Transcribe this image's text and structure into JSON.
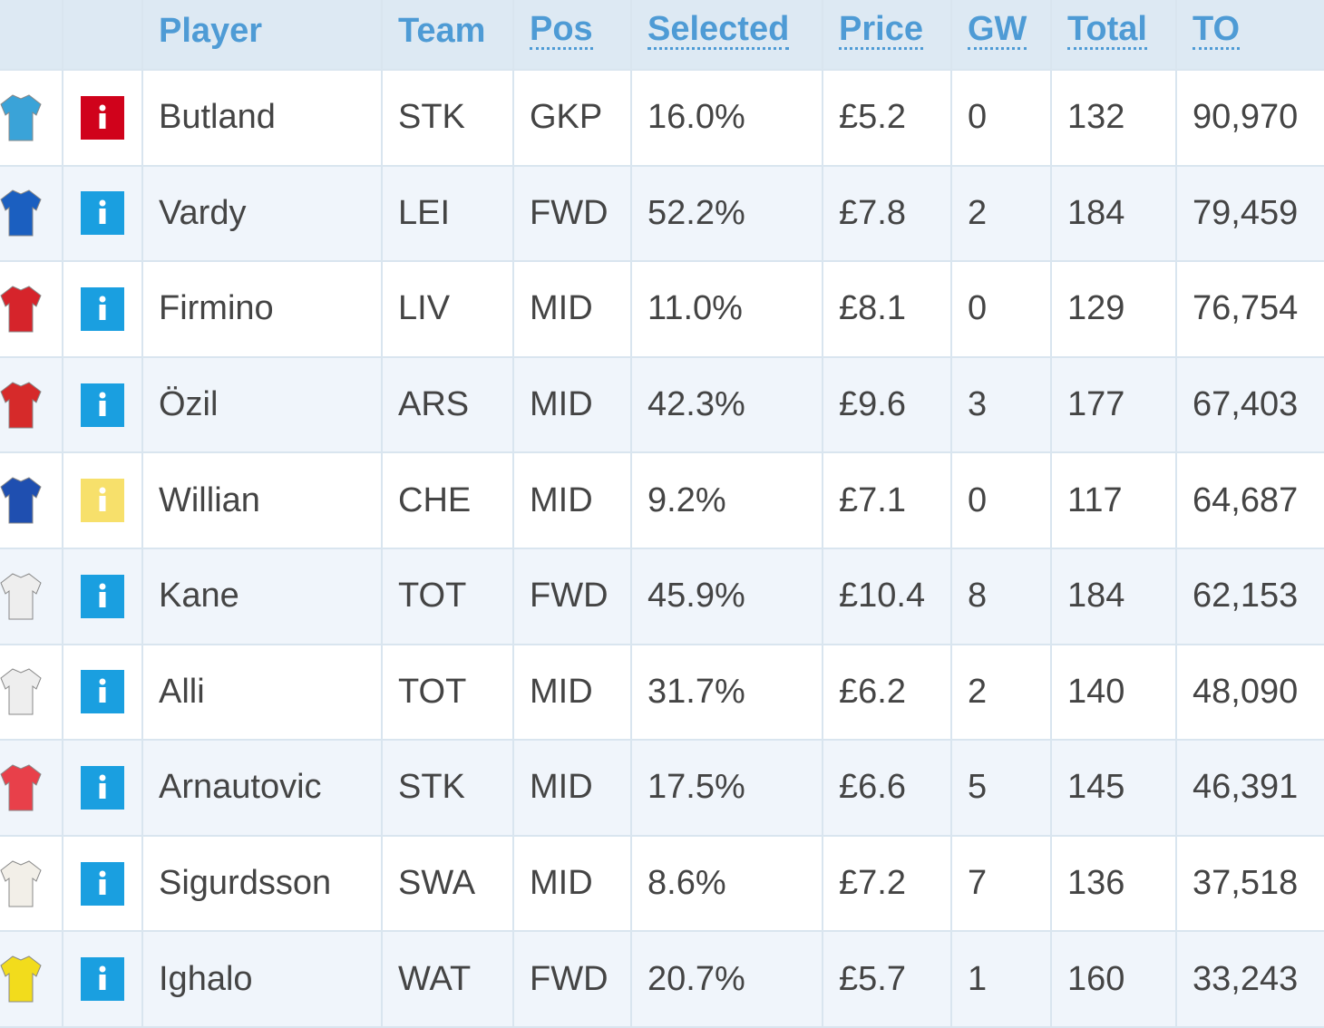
{
  "table": {
    "header": [
      "Player",
      "Team",
      "Pos",
      "Selected",
      "Price",
      "GW",
      "Total",
      "TO"
    ],
    "rows": [
      {
        "shirt_color": "#3aa3d8",
        "info_color": "#d0021b",
        "cells": [
          "Butland",
          "STK",
          "GKP",
          "16.0%",
          "£5.2",
          "0",
          "132",
          "90,970"
        ]
      },
      {
        "shirt_color": "#1b5fc0",
        "info_color": "#1a9fe0",
        "cells": [
          "Vardy",
          "LEI",
          "FWD",
          "52.2%",
          "£7.8",
          "2",
          "184",
          "79,459"
        ]
      },
      {
        "shirt_color": "#d6242b",
        "info_color": "#1a9fe0",
        "cells": [
          "Firmino",
          "LIV",
          "MID",
          "11.0%",
          "£8.1",
          "0",
          "129",
          "76,754"
        ]
      },
      {
        "shirt_color": "#d62a2a",
        "info_color": "#1a9fe0",
        "cells": [
          "Özil",
          "ARS",
          "MID",
          "42.3%",
          "£9.6",
          "3",
          "177",
          "67,403"
        ]
      },
      {
        "shirt_color": "#1f4fb0",
        "info_color": "#f7e06b",
        "cells": [
          "Willian",
          "CHE",
          "MID",
          "9.2%",
          "£7.1",
          "0",
          "117",
          "64,687"
        ]
      },
      {
        "shirt_color": "#eeeeee",
        "info_color": "#1a9fe0",
        "cells": [
          "Kane",
          "TOT",
          "FWD",
          "45.9%",
          "£10.4",
          "8",
          "184",
          "62,153"
        ]
      },
      {
        "shirt_color": "#eeeeee",
        "info_color": "#1a9fe0",
        "cells": [
          "Alli",
          "TOT",
          "MID",
          "31.7%",
          "£6.2",
          "2",
          "140",
          "48,090"
        ]
      },
      {
        "shirt_color": "#e8404a",
        "info_color": "#1a9fe0",
        "cells": [
          "Arnautovic",
          "STK",
          "MID",
          "17.5%",
          "£6.6",
          "5",
          "145",
          "46,391"
        ]
      },
      {
        "shirt_color": "#f2efe8",
        "info_color": "#1a9fe0",
        "cells": [
          "Sigurdsson",
          "SWA",
          "MID",
          "8.6%",
          "£7.2",
          "7",
          "136",
          "37,518"
        ]
      },
      {
        "shirt_color": "#f2dc1c",
        "info_color": "#1a9fe0",
        "cells": [
          "Ighalo",
          "WAT",
          "FWD",
          "20.7%",
          "£5.7",
          "1",
          "160",
          "33,243"
        ]
      }
    ]
  }
}
